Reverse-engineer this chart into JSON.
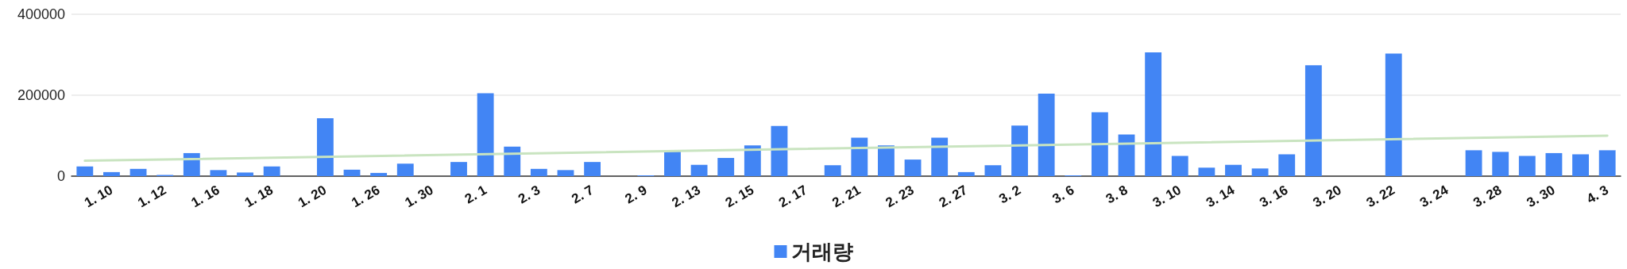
{
  "chart_data": {
    "type": "bar",
    "categories": [
      null,
      "1. 10",
      null,
      "1. 12",
      null,
      "1. 16",
      null,
      "1. 18",
      null,
      "1. 20",
      null,
      "1. 26",
      null,
      "1. 30",
      null,
      "2. 1",
      null,
      "2. 3",
      null,
      "2. 7",
      null,
      "2. 9",
      null,
      "2. 13",
      null,
      "2. 15",
      null,
      "2. 17",
      null,
      "2. 21",
      null,
      "2. 23",
      null,
      "2. 27",
      null,
      "3. 2",
      null,
      "3. 6",
      null,
      "3. 8",
      null,
      "3. 10",
      null,
      "3. 14",
      null,
      "3. 16",
      null,
      "3. 20",
      null,
      "3. 22",
      null,
      "3. 24",
      null,
      "3. 28",
      null,
      "3. 30",
      null,
      "4. 3"
    ],
    "series": [
      {
        "name": "거래량",
        "color": "#4285f4",
        "values": [
          24000,
          10000,
          18000,
          3000,
          57000,
          15000,
          9000,
          24000,
          0,
          143000,
          16000,
          8000,
          31000,
          0,
          35000,
          205000,
          73000,
          18000,
          15000,
          35000,
          0,
          2000,
          63000,
          28000,
          45000,
          76000,
          124000,
          0,
          27000,
          95000,
          76000,
          41000,
          95000,
          10000,
          27000,
          125000,
          204000,
          2000,
          158000,
          103000,
          306000,
          50000,
          21000,
          28000,
          19000,
          54000,
          274000,
          0,
          0,
          303000,
          0,
          0,
          64000,
          60000,
          50000,
          57000,
          54000,
          64000
        ]
      },
      {
        "type": "line",
        "color": "#c9e4c0",
        "values": [
          38000,
          null,
          null,
          null,
          null,
          null,
          null,
          null,
          null,
          null,
          null,
          null,
          null,
          null,
          null,
          null,
          null,
          null,
          null,
          null,
          null,
          null,
          null,
          null,
          null,
          null,
          null,
          null,
          null,
          null,
          null,
          null,
          null,
          null,
          null,
          null,
          null,
          null,
          null,
          null,
          null,
          null,
          null,
          null,
          null,
          null,
          null,
          null,
          null,
          null,
          null,
          null,
          null,
          null,
          null,
          null,
          null,
          100000
        ]
      }
    ],
    "ylim": [
      0,
      400000
    ],
    "yticks": [
      0,
      200000,
      400000
    ],
    "grid": "y",
    "legend": "bottom"
  }
}
